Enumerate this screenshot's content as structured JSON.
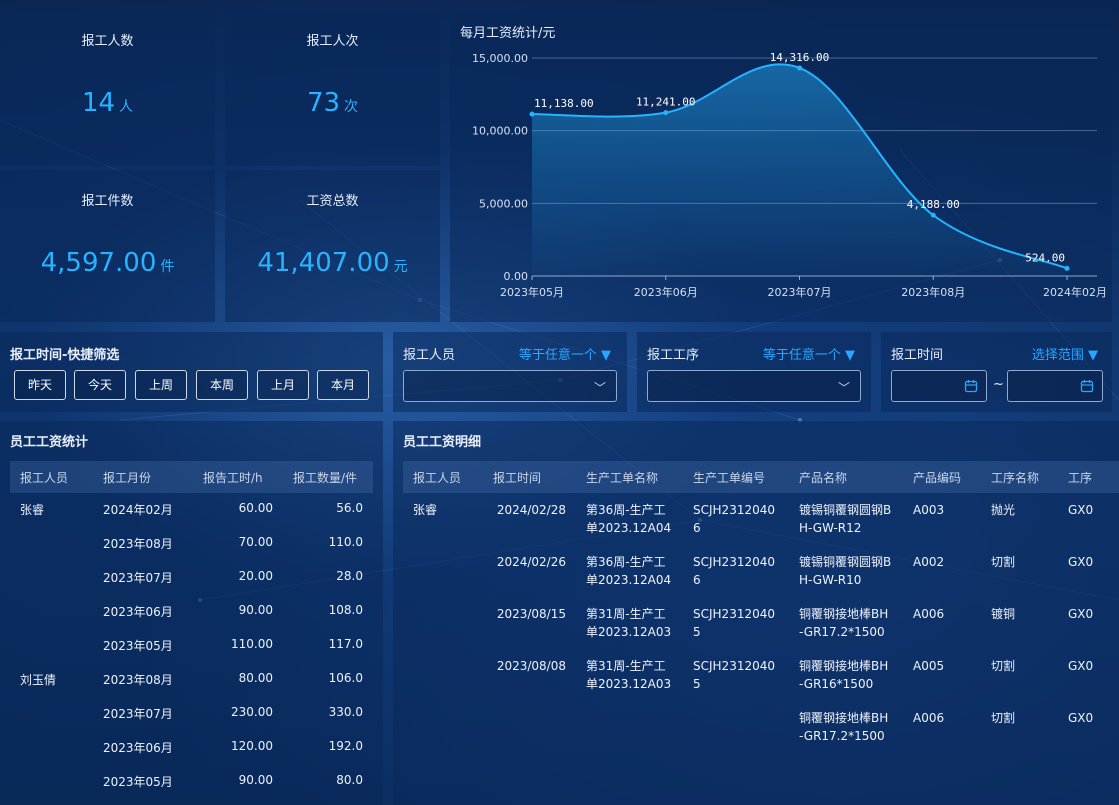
{
  "stats": [
    {
      "title": "报工人数",
      "value": "14",
      "unit": "人"
    },
    {
      "title": "报工人次",
      "value": "73",
      "unit": "次"
    },
    {
      "title": "报工件数",
      "value": "4,597.00",
      "unit": "件"
    },
    {
      "title": "工资总数",
      "value": "41,407.00",
      "unit": "元"
    }
  ],
  "chart": {
    "title": "每月工资统计/元"
  },
  "chart_data": {
    "type": "area",
    "categories": [
      "2023年05月",
      "2023年06月",
      "2023年07月",
      "2023年08月",
      "2024年02月"
    ],
    "values": [
      11138,
      11241,
      14316,
      4188,
      524
    ],
    "value_labels": [
      "11,138.00",
      "11,241.00",
      "14,316.00",
      "4,188.00",
      "524.00"
    ],
    "y_ticks": [
      "0.00",
      "5,000.00",
      "10,000.00",
      "15,000.00"
    ],
    "ylim": [
      0,
      15000
    ],
    "grid": true,
    "line_color": "#27b4ff"
  },
  "filters": {
    "quick_title": "报工时间-快捷筛选",
    "quick_buttons": [
      "昨天",
      "今天",
      "上周",
      "本周",
      "上月",
      "本月"
    ],
    "worker": {
      "label": "报工人员",
      "mode": "等于任意一个"
    },
    "process": {
      "label": "报工工序",
      "mode": "等于任意一个"
    },
    "time": {
      "label": "报工时间",
      "mode": "选择范围",
      "separator": "~"
    }
  },
  "summary": {
    "title": "员工工资统计",
    "columns": [
      "报工人员",
      "报工月份",
      "报告工时/h",
      "报工数量/件"
    ],
    "rows": [
      [
        "张睿",
        "2024年02月",
        "60.00",
        "56.0"
      ],
      [
        "",
        "2023年08月",
        "70.00",
        "110.0"
      ],
      [
        "",
        "2023年07月",
        "20.00",
        "28.0"
      ],
      [
        "",
        "2023年06月",
        "90.00",
        "108.0"
      ],
      [
        "",
        "2023年05月",
        "110.00",
        "117.0"
      ],
      [
        "刘玉倩",
        "2023年08月",
        "80.00",
        "106.0"
      ],
      [
        "",
        "2023年07月",
        "230.00",
        "330.0"
      ],
      [
        "",
        "2023年06月",
        "120.00",
        "192.0"
      ],
      [
        "",
        "2023年05月",
        "90.00",
        "80.0"
      ]
    ]
  },
  "detail": {
    "title": "员工工资明细",
    "columns": [
      "报工人员",
      "报工时间",
      "生产工单名称",
      "生产工单编号",
      "产品名称",
      "产品编码",
      "工序名称",
      "工序"
    ],
    "rows": [
      [
        "张睿",
        "2024/02/28",
        "第36周-生产工单2023.12A04",
        "SCJH23120406",
        "镀锡铜覆钢圆钢BH-GW-R12",
        "A003",
        "抛光",
        "GX0"
      ],
      [
        "",
        "2024/02/26",
        "第36周-生产工单2023.12A04",
        "SCJH23120406",
        "镀锡铜覆钢圆钢BH-GW-R10",
        "A002",
        "切割",
        "GX0"
      ],
      [
        "",
        "2023/08/15",
        "第31周-生产工单2023.12A03",
        "SCJH23120405",
        "铜覆钢接地棒BH-GR17.2*1500",
        "A006",
        "镀铜",
        "GX0"
      ],
      [
        "",
        "2023/08/08",
        "第31周-生产工单2023.12A03",
        "SCJH23120405",
        "铜覆钢接地棒BH-GR16*1500",
        "A005",
        "切割",
        "GX0"
      ],
      [
        "",
        "",
        "",
        "",
        "铜覆钢接地棒BH-GR17.2*1500",
        "A006",
        "切割",
        "GX0"
      ]
    ]
  }
}
